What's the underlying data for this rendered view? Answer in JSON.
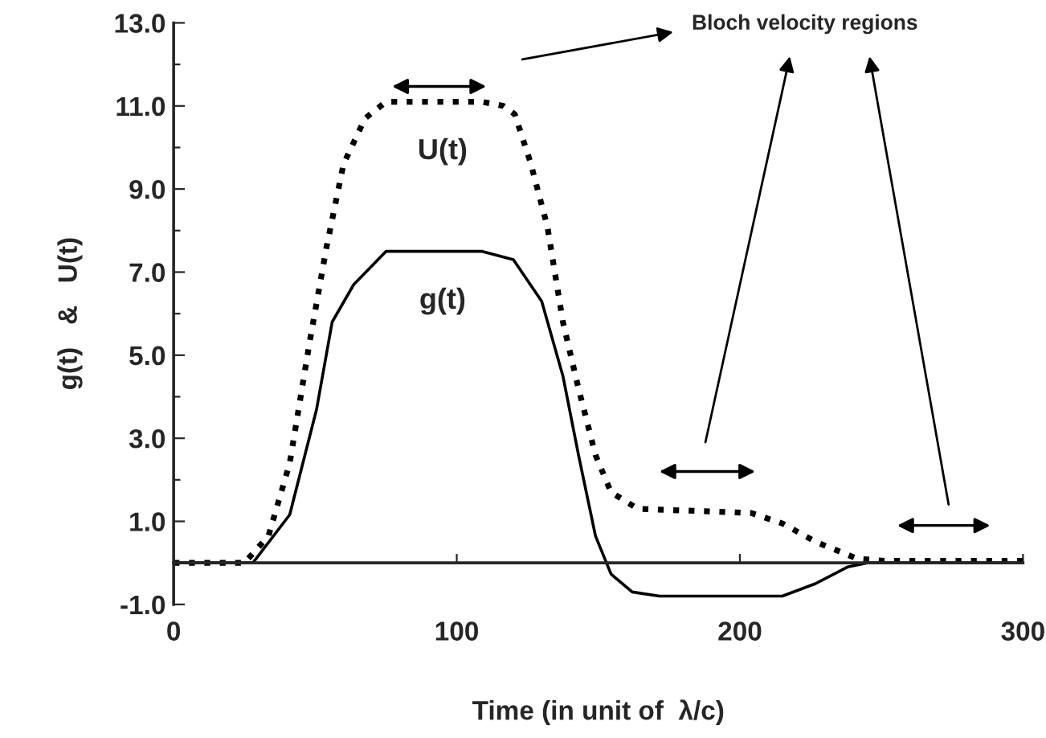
{
  "chart_data": {
    "type": "line",
    "xlabel": "Time (in unit of  λ/c)",
    "ylabel": "g(t)   &   U(t)",
    "xlim": [
      0,
      300
    ],
    "xticks": [
      0,
      100,
      200,
      300
    ],
    "ylim": [
      -1,
      13
    ],
    "yticks": [
      {
        "value": -1,
        "label": "-1.0"
      },
      {
        "value": 0,
        "label": null
      },
      {
        "value": 1,
        "label": "1.0"
      },
      {
        "value": 2,
        "label": null
      },
      {
        "value": 3,
        "label": "3.0"
      },
      {
        "value": 4,
        "label": null
      },
      {
        "value": 5,
        "label": "5.0"
      },
      {
        "value": 6,
        "label": null
      },
      {
        "value": 7,
        "label": "7.0"
      },
      {
        "value": 8,
        "label": null
      },
      {
        "value": 9,
        "label": "9.0"
      },
      {
        "value": 10,
        "label": null
      },
      {
        "value": 11,
        "label": "11.0"
      },
      {
        "value": 12,
        "label": null
      },
      {
        "value": 13,
        "label": "13.0"
      }
    ],
    "grid": false,
    "legend": false,
    "marker": "none",
    "series": [
      {
        "color": "#000000",
        "line_style": "dotted",
        "x": [
          0,
          25,
          33.5,
          41,
          48,
          54,
          60,
          67.6,
          75,
          90,
          109,
          116.5,
          120.5,
          126,
          132,
          137.5,
          143,
          149,
          154.5,
          164,
          185,
          204,
          215,
          227,
          241.5,
          251,
          270,
          300
        ],
        "values": [
          0,
          0,
          0.65,
          2.4,
          5.3,
          7.6,
          9.6,
          10.7,
          11.1,
          11.1,
          11.1,
          11.0,
          10.8,
          9.65,
          8.1,
          5.8,
          4.2,
          2.6,
          1.7,
          1.3,
          1.25,
          1.2,
          0.95,
          0.5,
          0.1,
          0.05,
          0.05,
          0.05
        ]
      },
      {
        "color": "#000000",
        "line_style": "solid",
        "x": [
          0,
          28,
          41,
          50.5,
          56,
          63.6,
          75,
          90,
          109,
          120,
          130,
          137.5,
          143,
          149,
          154.5,
          162,
          171.6,
          190,
          215,
          226.7,
          238,
          245,
          270,
          300
        ],
        "values": [
          0,
          0,
          1.16,
          3.7,
          5.8,
          6.7,
          7.5,
          7.5,
          7.5,
          7.3,
          6.3,
          4.5,
          2.6,
          0.65,
          -0.27,
          -0.7,
          -0.8,
          -0.8,
          -0.8,
          -0.5,
          -0.1,
          0,
          0,
          0
        ]
      }
    ],
    "annotations": [
      "U(t)",
      "g(t)",
      "Bloch velocity regions"
    ]
  }
}
